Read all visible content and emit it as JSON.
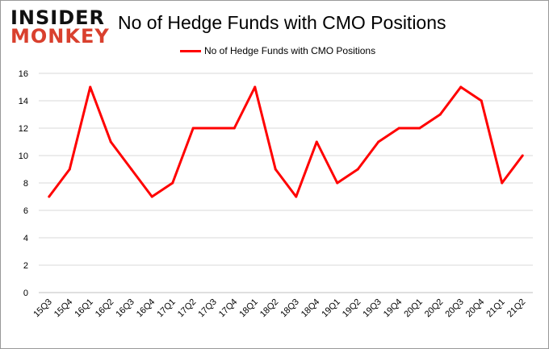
{
  "logo": {
    "line1": "INSIDER",
    "line2": "MONKEY"
  },
  "chart_data": {
    "type": "line",
    "title": "No of Hedge Funds with CMO Positions",
    "categories": [
      "15Q3",
      "15Q4",
      "16Q1",
      "16Q2",
      "16Q3",
      "16Q4",
      "17Q1",
      "17Q2",
      "17Q3",
      "17Q4",
      "18Q1",
      "18Q2",
      "18Q3",
      "18Q4",
      "19Q1",
      "19Q2",
      "19Q3",
      "19Q4",
      "20Q1",
      "20Q2",
      "20Q3",
      "20Q4",
      "21Q1",
      "21Q2"
    ],
    "series": [
      {
        "name": "No of Hedge Funds with CMO Positions",
        "color": "#ff0000",
        "values": [
          7,
          9,
          15,
          11,
          9,
          7,
          8,
          12,
          12,
          12,
          15,
          9,
          7,
          11,
          8,
          9,
          11,
          12,
          12,
          13,
          15,
          14,
          8,
          10
        ]
      }
    ],
    "yticks": [
      "0",
      "2",
      "4",
      "6",
      "8",
      "10",
      "12",
      "14",
      "16"
    ],
    "ylim": [
      0,
      16
    ],
    "grid": true,
    "legend": "top-center",
    "xlabel": "",
    "ylabel": ""
  }
}
